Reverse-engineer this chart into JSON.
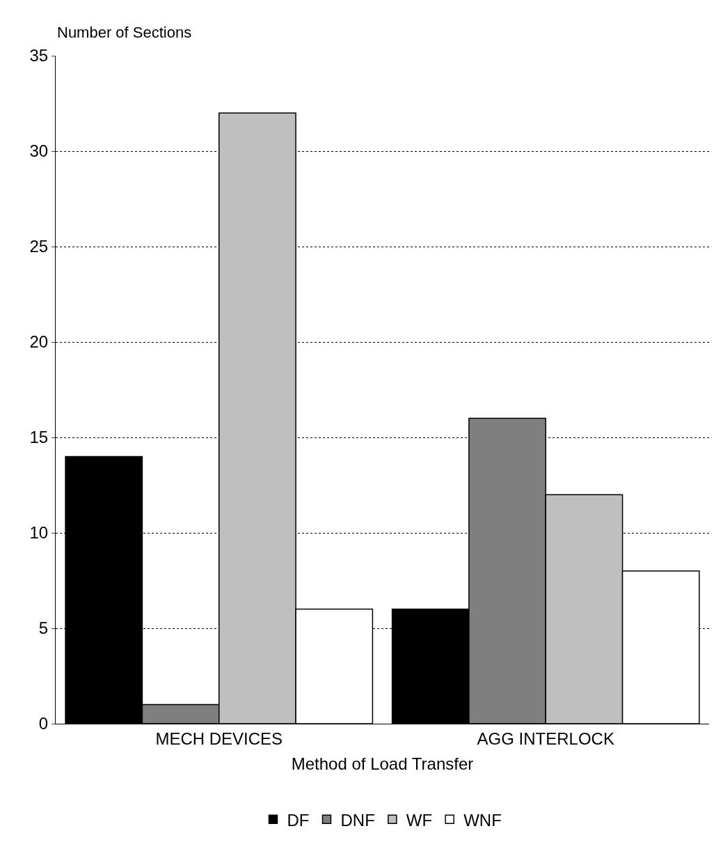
{
  "chart_data": {
    "type": "bar",
    "xlabel": "Method of Load Transfer",
    "ylabel": "Number of Sections",
    "categories": [
      "MECH DEVICES",
      "AGG INTERLOCK"
    ],
    "series": [
      {
        "name": "DF",
        "color": "#000000",
        "values": [
          14,
          6
        ]
      },
      {
        "name": "DNF",
        "color": "#7f7f7f",
        "values": [
          1,
          16
        ]
      },
      {
        "name": "WF",
        "color": "#bfbfbf",
        "values": [
          32,
          12
        ]
      },
      {
        "name": "WNF",
        "color": "#ffffff",
        "values": [
          6,
          8
        ]
      }
    ],
    "ylim": [
      0,
      35
    ],
    "yticks": [
      0,
      5,
      10,
      15,
      20,
      25,
      30,
      35
    ],
    "grid": "y",
    "legend": "bottom"
  }
}
